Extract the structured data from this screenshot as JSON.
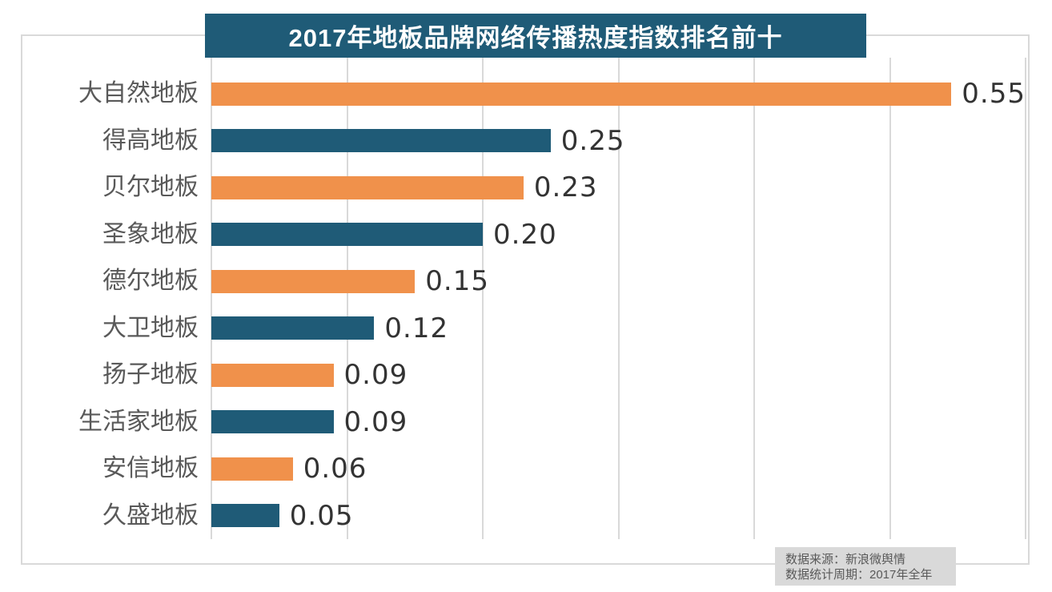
{
  "title": "2017年地板品牌网络传播热度指数排名前十",
  "source": {
    "line1": "数据来源：新浪微舆情",
    "line2": "数据统计周期：2017年全年"
  },
  "colors": {
    "banner_bg": "#1F5B77",
    "bar_orange": "#F0914B",
    "bar_blue": "#1F5B77",
    "category_label": "#595959",
    "value_label": "#333333",
    "gridline": "#D9D9D9",
    "source_box_bg": "#D9D9D9",
    "title_text": "#FFFFFF"
  },
  "chart_data": {
    "type": "bar",
    "orientation": "horizontal",
    "title": "2017年地板品牌网络传播热度指数排名前十",
    "categories": [
      "大自然地板",
      "得高地板",
      "贝尔地板",
      "圣象地板",
      "德尔地板",
      "大卫地板",
      "扬子地板",
      "生活家地板",
      "安信地板",
      "久盛地板"
    ],
    "values": [
      0.55,
      0.25,
      0.23,
      0.2,
      0.15,
      0.12,
      0.09,
      0.09,
      0.06,
      0.05
    ],
    "value_labels": [
      "0.55",
      "0.25",
      "0.23",
      "0.20",
      "0.15",
      "0.12",
      "0.09",
      "0.09",
      "0.06",
      "0.05"
    ],
    "xlabel": "",
    "ylabel": "",
    "xlim": [
      0,
      0.6
    ],
    "gridlines": [
      0,
      0.1,
      0.2,
      0.3,
      0.4,
      0.5,
      0.6
    ],
    "grid": true,
    "legend": false,
    "bar_colors_alternate": [
      "#F0914B",
      "#1F5B77"
    ],
    "annotations": [
      "数据来源：新浪微舆情",
      "数据统计周期：2017年全年"
    ]
  }
}
